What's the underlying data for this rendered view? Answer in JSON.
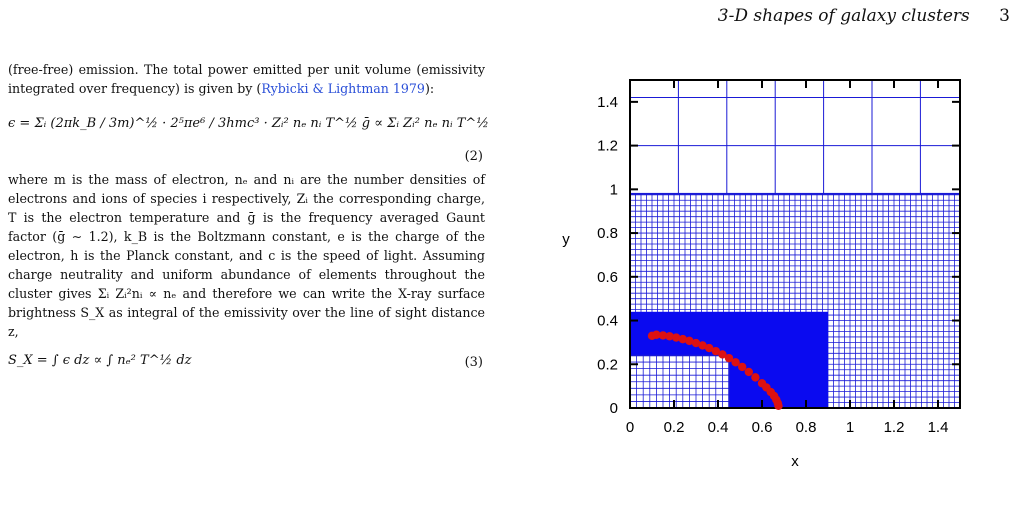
{
  "header": {
    "running_title": "3-D shapes of galaxy clusters",
    "page_number": "3"
  },
  "text": {
    "p1_a": "(free-free) emission. The total power emitted per unit volume (emissivity integrated over frequency) is given by (",
    "p1_cite": "Rybicki & Lightman 1979",
    "p1_b": "):",
    "eq2_text": "ϵ = Σᵢ (2πk_B / 3m)^½ · 2⁵πe⁶ / 3hmc³ · Zᵢ² nₑ nᵢ T^½ ḡ  ∝ Σᵢ Zᵢ² nₑ nᵢ T^½",
    "eq2_num": "(2)",
    "p2": "where m is the mass of electron, nₑ and nᵢ are the number densities of electrons and ions of species i respectively, Zᵢ the corresponding charge, T is the electron temperature and ḡ is the frequency averaged Gaunt factor (ḡ ∼ 1.2), k_B is the Boltzmann constant, e is the charge of the electron, h is the Planck constant, and c is the speed of light. Assuming charge neutrality and uniform abundance of elements throughout the cluster gives Σᵢ Zᵢ²nᵢ ∝ nₑ and therefore we can write the X-ray surface brightness S_X as integral of the emissivity over the line of sight distance z,",
    "eq3_text": "S_X = ∫ ϵ dz ∝ ∫ nₑ² T^½ dz",
    "eq3_num": "(3)"
  },
  "chart_data": {
    "type": "scatter",
    "xlabel": "x",
    "ylabel": "y",
    "xlim": [
      0,
      1.5
    ],
    "ylim": [
      0,
      1.5
    ],
    "x_ticks": [
      "0",
      "0.2",
      "0.4",
      "0.6",
      "0.8",
      "1",
      "1.2",
      "1.4"
    ],
    "y_ticks": [
      "0",
      "0.2",
      "0.4",
      "0.6",
      "0.8",
      "1",
      "1.2",
      "1.4"
    ],
    "grid_levels": [
      {
        "x0": 0,
        "x1": 1.5,
        "y0": 0.98,
        "y1": 1.5,
        "spacing": 0.22,
        "color": "#1a1ad6"
      },
      {
        "x0": 0,
        "x1": 1.5,
        "y0": 0,
        "y1": 0.98,
        "spacing": 0.025,
        "color": "#1a1ad6"
      },
      {
        "x0": 0,
        "x1": 0.9,
        "y0": 0,
        "y1": 0.44,
        "spacing": 0.0,
        "color": "#0a0af0"
      },
      {
        "x0": 0,
        "x1": 0.45,
        "y0": 0,
        "y1": 0.24,
        "spacing": 0.03,
        "color": "#1a1ad6"
      }
    ],
    "series": [
      {
        "marker_color": "#dd1111",
        "points": [
          [
            0.1,
            0.33
          ],
          [
            0.12,
            0.335
          ],
          [
            0.15,
            0.332
          ],
          [
            0.18,
            0.328
          ],
          [
            0.21,
            0.322
          ],
          [
            0.24,
            0.315
          ],
          [
            0.27,
            0.307
          ],
          [
            0.3,
            0.297
          ],
          [
            0.33,
            0.286
          ],
          [
            0.36,
            0.274
          ],
          [
            0.39,
            0.26
          ],
          [
            0.42,
            0.245
          ],
          [
            0.45,
            0.228
          ],
          [
            0.48,
            0.209
          ],
          [
            0.51,
            0.188
          ],
          [
            0.54,
            0.165
          ],
          [
            0.57,
            0.14
          ],
          [
            0.6,
            0.113
          ],
          [
            0.62,
            0.094
          ],
          [
            0.64,
            0.073
          ],
          [
            0.655,
            0.055
          ],
          [
            0.665,
            0.038
          ],
          [
            0.672,
            0.022
          ],
          [
            0.675,
            0.01
          ]
        ]
      }
    ]
  }
}
